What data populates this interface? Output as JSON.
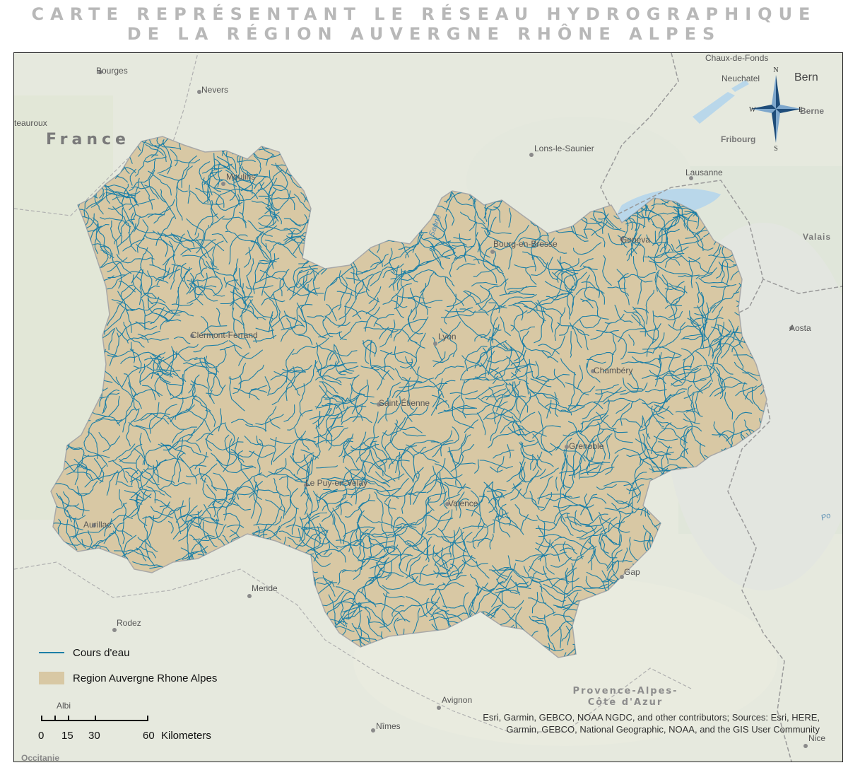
{
  "title": {
    "line1": "CARTE REPRÉSENTANT LE RÉSEAU HYDROGRAPHIQUE",
    "line2": "DE LA RÉGION AUVERGNE RHÔNE ALPES"
  },
  "map": {
    "country_label": "France",
    "places": [
      {
        "name": "Bourges"
      },
      {
        "name": "Nevers"
      },
      {
        "name": "teauroux"
      },
      {
        "name": "Moulins"
      },
      {
        "name": "Lons-le-Saunier"
      },
      {
        "name": "Chaux-de-Fonds"
      },
      {
        "name": "Neuchatel"
      },
      {
        "name": "Bern"
      },
      {
        "name": "Berne"
      },
      {
        "name": "Fribourg"
      },
      {
        "name": "Lausanne"
      },
      {
        "name": "Geneva"
      },
      {
        "name": "Bourg-en-Bresse"
      },
      {
        "name": "Valais"
      },
      {
        "name": "Clermont-Ferrand"
      },
      {
        "name": "Lyon"
      },
      {
        "name": "Aosta"
      },
      {
        "name": "Chambéry"
      },
      {
        "name": "Saint-Étienne"
      },
      {
        "name": "Grenoble"
      },
      {
        "name": "Le Puy-en-Velay"
      },
      {
        "name": "Aurillac"
      },
      {
        "name": "Valence"
      },
      {
        "name": "Gap"
      },
      {
        "name": "Mende"
      },
      {
        "name": "Rodez"
      },
      {
        "name": "Albi"
      },
      {
        "name": "Avignon"
      },
      {
        "name": "Nîmes"
      },
      {
        "name": "Nice"
      },
      {
        "name": "Occitanie"
      }
    ],
    "river_labels": [
      "Saone",
      "Po"
    ],
    "sub_region_line1": "Provence-Alpes-",
    "sub_region_line2": "Côte d'Azur"
  },
  "north_arrow": {
    "n": "N",
    "s": "S",
    "e": "E",
    "w": "W"
  },
  "legend": {
    "rivers_label": "Cours d'eau",
    "region_label": "Region Auvergne Rhone Alpes"
  },
  "scalebar": {
    "ticks": [
      "0",
      "15",
      "30",
      "60"
    ],
    "unit": "Kilometers"
  },
  "attribution": {
    "line1": "Esri, Garmin, GEBCO, NOAA NGDC, and other contributors; Sources: Esri, HERE,",
    "line2": "Garmin, GEBCO, National Geographic, NOAA, and the GIS User Community"
  },
  "colors": {
    "river": "#1c7fa6",
    "region_fill": "#d8c8a4",
    "basemap": "#e6e9de",
    "lake": "#b9d7ea",
    "title": "#b8b8b8"
  }
}
